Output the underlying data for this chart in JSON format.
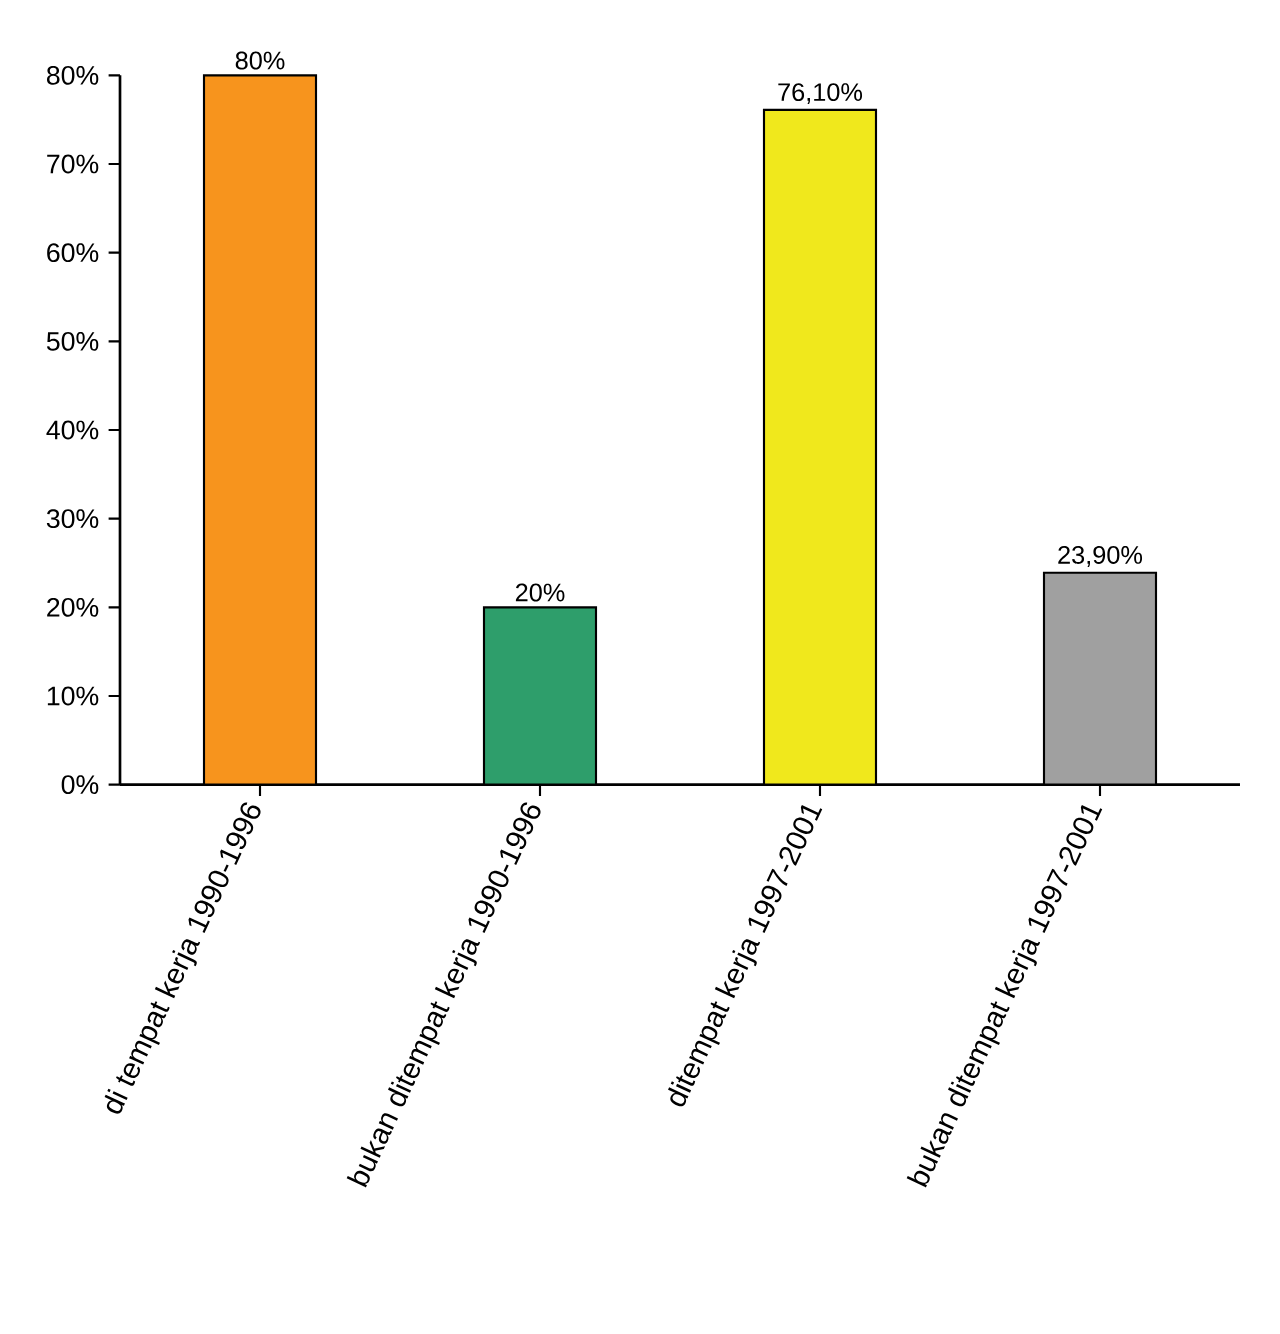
{
  "chart_data": {
    "type": "bar",
    "categories": [
      "di tempat kerja 1990-1996",
      "bukan ditempat kerja 1990-1996",
      "ditempat kerja 1997-2001",
      "bukan ditempat kerja 1997-2001"
    ],
    "values": [
      80,
      20,
      76.1,
      23.9
    ],
    "colors": [
      "#f7941d",
      "#2e9e6b",
      "#f0e81c",
      "#a0a0a0"
    ],
    "value_labels": [
      "80%",
      "20%",
      "76,10%",
      "23,90%"
    ],
    "ylim": [
      0,
      80
    ],
    "yticks": [
      {
        "value": 0,
        "label": "0%"
      },
      {
        "value": 10,
        "label": "10%"
      },
      {
        "value": 20,
        "label": "20%"
      },
      {
        "value": 30,
        "label": "30%"
      },
      {
        "value": 40,
        "label": "40%"
      },
      {
        "value": 50,
        "label": "50%"
      },
      {
        "value": 60,
        "label": "60%"
      },
      {
        "value": 70,
        "label": "70%"
      },
      {
        "value": 80,
        "label": "80%"
      }
    ]
  }
}
